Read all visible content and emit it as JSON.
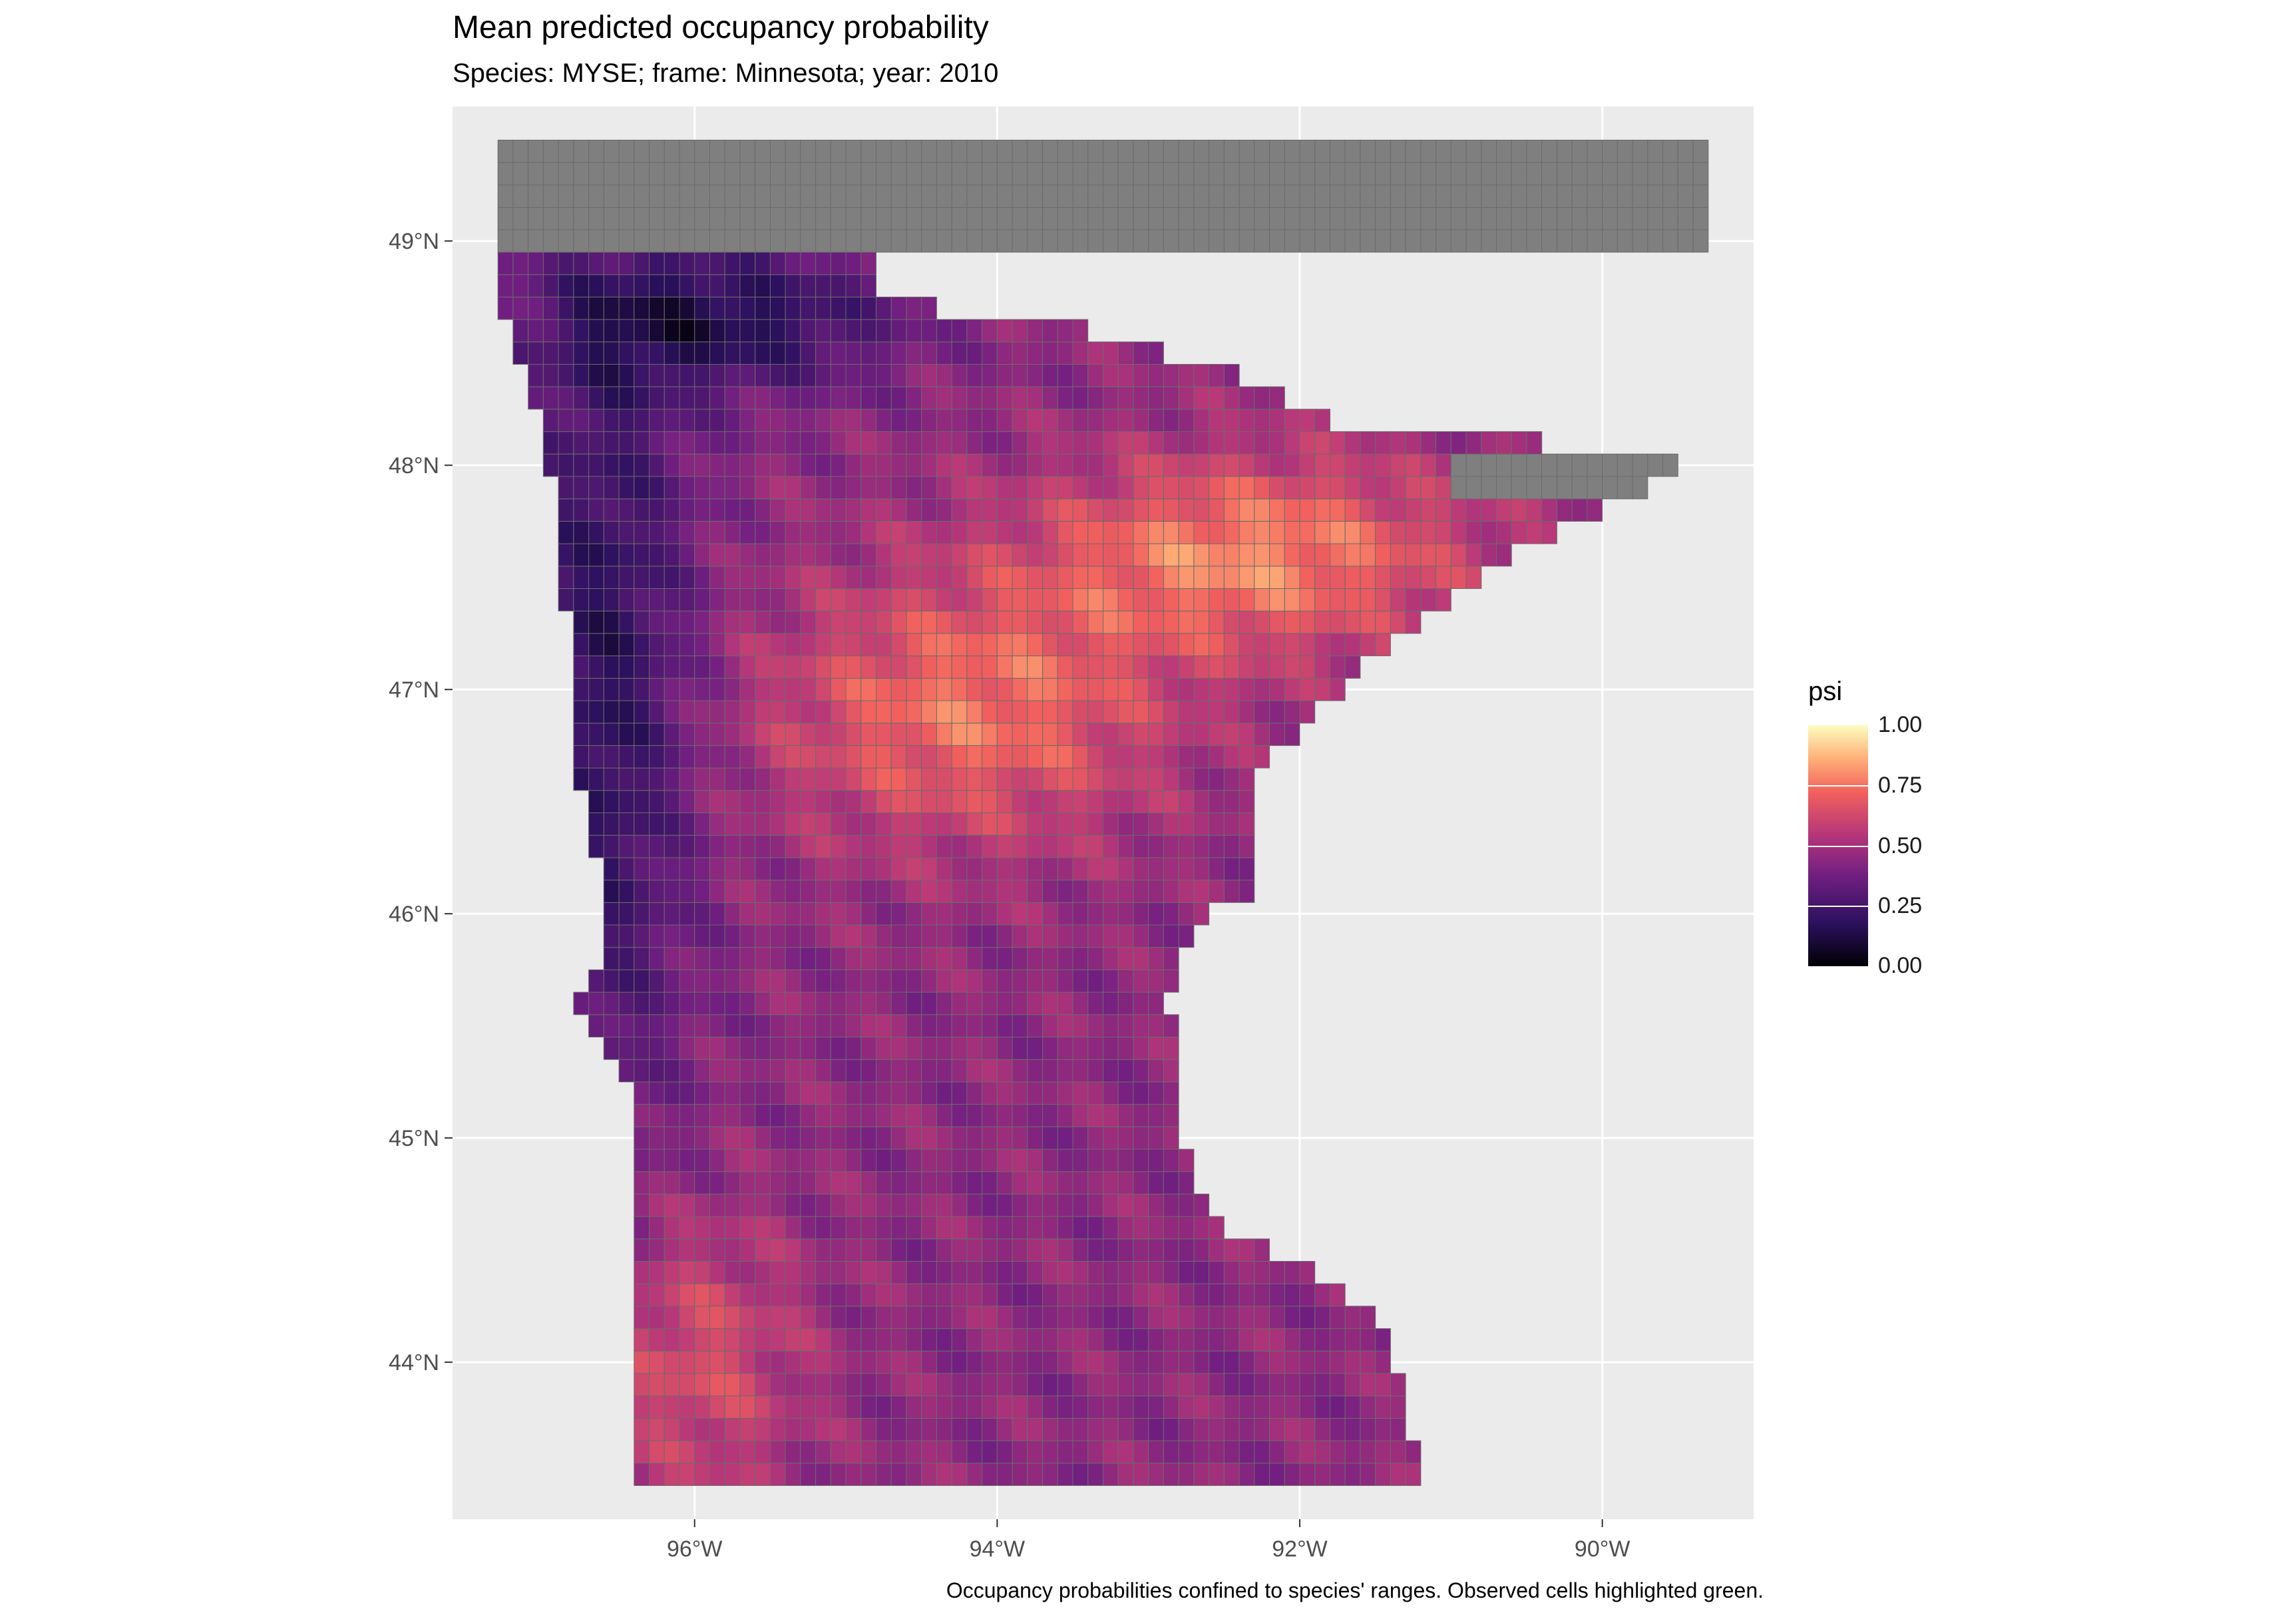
{
  "title": "Mean predicted occupancy probability",
  "subtitle": "Species: MYSE; frame: Minnesota; year: 2010",
  "caption": "Occupancy probabilities confined to species' ranges. Observed cells highlighted green.",
  "map": {
    "x_ticks": [
      "96°W",
      "94°W",
      "92°W",
      "90°W"
    ],
    "y_ticks": [
      "49°N",
      "48°N",
      "47°N",
      "46°N",
      "45°N",
      "44°N"
    ],
    "lon_range": [
      -97.6,
      -89.0
    ],
    "lat_range": [
      43.3,
      49.6
    ],
    "outside_range_color": "#7f7f7f",
    "panel_background": "#ebebeb",
    "grid_color": "#ffffff"
  },
  "legend": {
    "title": "psi",
    "labels": [
      "1.00",
      "0.75",
      "0.50",
      "0.25",
      "0.00"
    ],
    "palette": "magma"
  }
}
